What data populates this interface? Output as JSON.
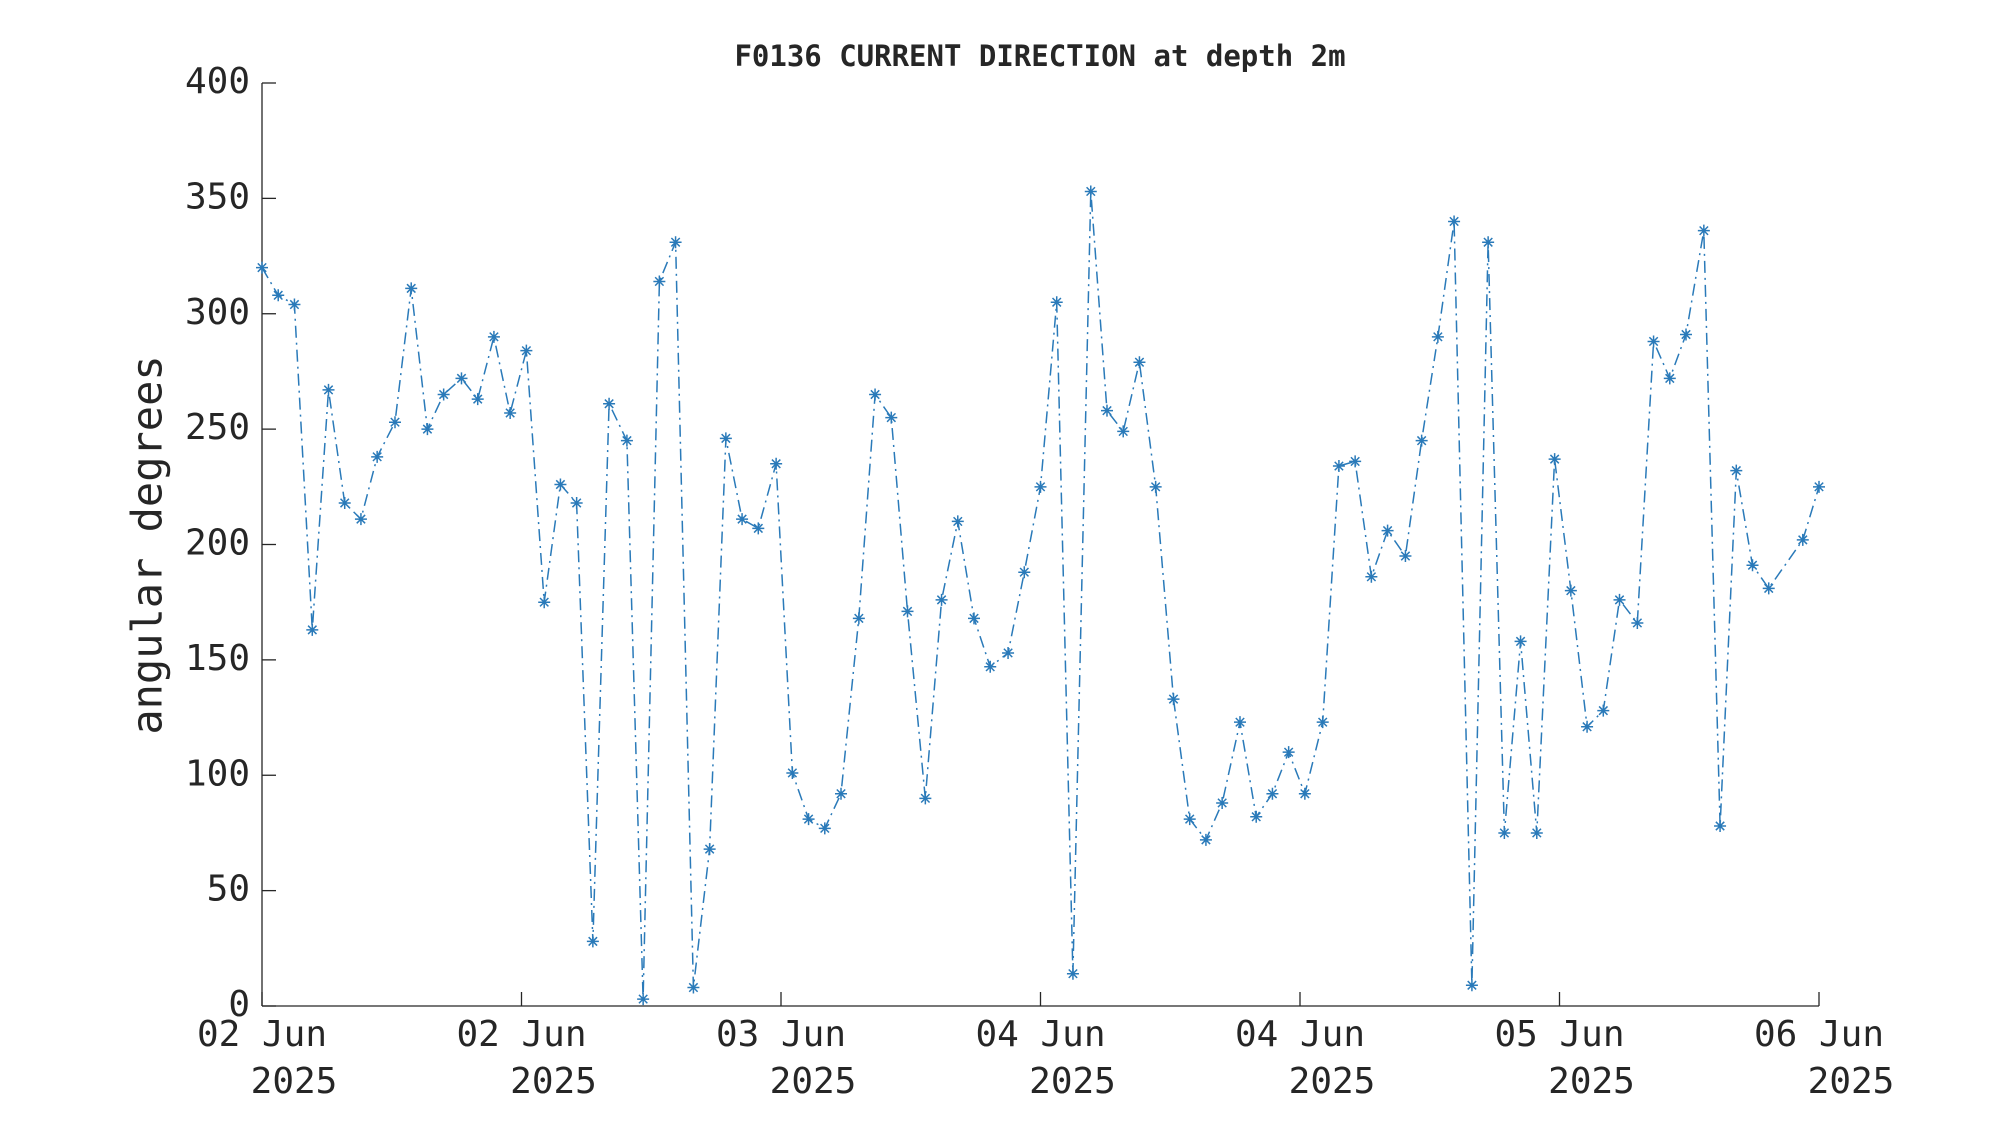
{
  "chart_data": {
    "type": "line",
    "title": "F0136 CURRENT DIRECTION at depth 2m",
    "ylabel": "angular degrees",
    "x": [
      0,
      1.0,
      2.0,
      3.1,
      4.1,
      5.1,
      6.1,
      7.1,
      8.2,
      9.2,
      10.2,
      11.2,
      12.3,
      13.3,
      14.3,
      15.3,
      16.3,
      17.4,
      18.4,
      19.4,
      20.4,
      21.4,
      22.5,
      23.5,
      24.5,
      25.5,
      26.6,
      27.6,
      28.6,
      29.6,
      30.6,
      31.7,
      32.7,
      33.7,
      34.7,
      35.7,
      36.8,
      37.8,
      38.8,
      39.8,
      40.9,
      41.9,
      42.9,
      43.9,
      44.9,
      46.0,
      47.0,
      48.0,
      49.0,
      50.0,
      51.1,
      52.1,
      53.1,
      54.1,
      55.1,
      56.2,
      57.2,
      58.2,
      59.2,
      60.3,
      61.3,
      62.3,
      63.3,
      64.3,
      65.4,
      66.4,
      67.4,
      68.4,
      69.4,
      70.5,
      71.5,
      72.5,
      73.5,
      74.6,
      75.6,
      76.6,
      77.6,
      78.6,
      79.7,
      80.7,
      81.7,
      82.7,
      83.7,
      84.8,
      85.8,
      86.8,
      87.8,
      88.9,
      89.9,
      90.9,
      91.9,
      92.9,
      95.0,
      96.0
    ],
    "series": [
      {
        "color": "#2a7ab9",
        "values": [
          320,
          308,
          304,
          163,
          267,
          218,
          211,
          238,
          253,
          311,
          250,
          265,
          272,
          263,
          290,
          257,
          284,
          175,
          226,
          218,
          28,
          261,
          245,
          3,
          314,
          331,
          8,
          68,
          246,
          211,
          207,
          235,
          101,
          81,
          77,
          92,
          168,
          265,
          255,
          171,
          90,
          176,
          210,
          168,
          147,
          153,
          188,
          225,
          305,
          14,
          353,
          258,
          249,
          279,
          225,
          133,
          81,
          72,
          88,
          123,
          82,
          92,
          110,
          92,
          123,
          234,
          236,
          186,
          206,
          195,
          245,
          290,
          340,
          9,
          331,
          75,
          158,
          75,
          237,
          180,
          121,
          128,
          176,
          166,
          288,
          272,
          291,
          336,
          78,
          232,
          191,
          181,
          202,
          225
        ]
      }
    ],
    "xlim": [
      0,
      96
    ],
    "xticks": [
      {
        "value": 0,
        "label": "02 Jun 2025"
      },
      {
        "value": 16,
        "label": "02 Jun 2025"
      },
      {
        "value": 32,
        "label": "03 Jun 2025"
      },
      {
        "value": 48,
        "label": "04 Jun 2025"
      },
      {
        "value": 64,
        "label": "04 Jun 2025"
      },
      {
        "value": 80,
        "label": "05 Jun 2025"
      },
      {
        "value": 96,
        "label": "06 Jun 2025"
      }
    ],
    "ylim": [
      0,
      400
    ],
    "yticks": [
      0,
      50,
      100,
      150,
      200,
      250,
      300,
      350,
      400
    ],
    "grid": false
  }
}
